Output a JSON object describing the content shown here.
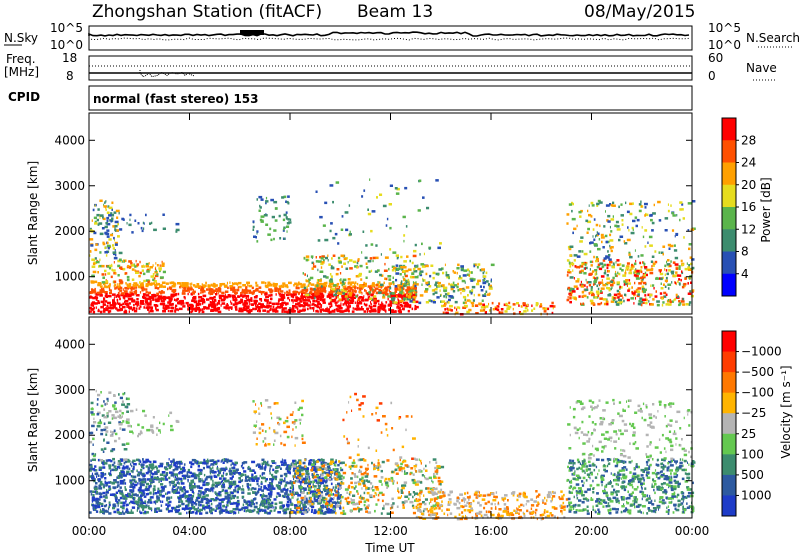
{
  "header": {
    "station": "Zhongshan Station (fitACF)",
    "beam": "Beam 13",
    "date": "08/May/2015"
  },
  "params": {
    "nsky_label": "N.Sky",
    "nsearch_label": "N.Search",
    "freq_label": "Freq.",
    "freq_unit": "[MHz]",
    "nave_label": "Nave",
    "cpid_label": "CPID",
    "cpid_text": "normal (fast stereo) 153",
    "noise_ticks": [
      "10^5",
      "10^0"
    ],
    "noise_right_ticks": [
      "10^5",
      "10^0"
    ],
    "freq_ticks": [
      "18",
      "8"
    ],
    "nave_ticks": [
      "60",
      "0"
    ]
  },
  "chart_data": [
    {
      "type": "heatmap",
      "title": "",
      "ylabel": "Slant Range [km]",
      "xlabel": "",
      "y_ticks": [
        "1000",
        "2000",
        "3000",
        "4000"
      ],
      "ylim": [
        180,
        4600
      ],
      "colorbar": {
        "label": "Power [dB]",
        "tick_labels": [
          "4",
          "8",
          "12",
          "16",
          "20",
          "24",
          "28"
        ],
        "colors": [
          "#0000ff",
          "#2850b4",
          "#3c8c6e",
          "#5ab44b",
          "#e6dc1e",
          "#ffa000",
          "#ff5000",
          "#ff0000"
        ]
      }
    },
    {
      "type": "heatmap",
      "title": "",
      "ylabel": "Slant Range [km]",
      "xlabel": "Time UT",
      "x_ticks": [
        "00:00",
        "04:00",
        "08:00",
        "12:00",
        "16:00",
        "20:00",
        "00:00"
      ],
      "y_ticks": [
        "1000",
        "2000",
        "3000",
        "4000"
      ],
      "ylim": [
        180,
        4600
      ],
      "colorbar": {
        "label": "Velocity [m s⁻¹]",
        "tick_labels": [
          "1000",
          "500",
          "100",
          "25",
          "−25",
          "−100",
          "−500",
          "−1000"
        ],
        "colors": [
          "#1e3cc8",
          "#2d5aa0",
          "#3c8c6e",
          "#64c850",
          "#b4b4b4",
          "#ffb400",
          "#ff7800",
          "#ff3c00",
          "#ff0000"
        ]
      }
    }
  ]
}
